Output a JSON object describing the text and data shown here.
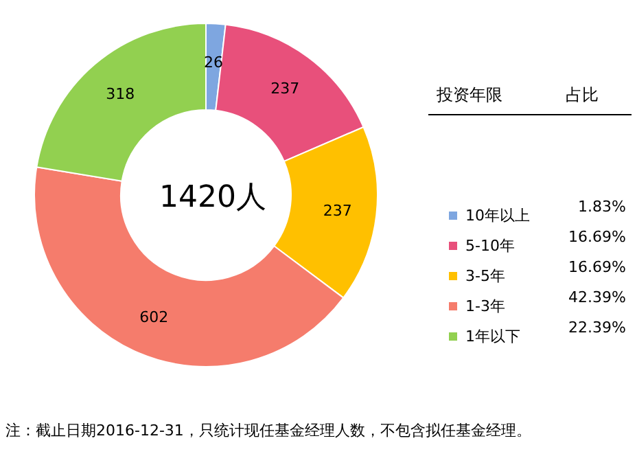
{
  "chart_data": {
    "type": "donut",
    "title": "1420人",
    "legend_title": "投资年限",
    "categories": [
      "10年以上",
      "5-10年",
      "3-5年",
      "1-3年",
      "1年以下"
    ],
    "values": [
      26,
      237,
      237,
      602,
      318
    ],
    "colors": [
      "#7ea6e0",
      "#e8507b",
      "#ffc000",
      "#f57c6c",
      "#92d050"
    ],
    "data_labels": true,
    "legend": "right",
    "annotations": [
      "占比",
      "1.83%",
      "16.69%",
      "16.69%",
      "42.39%",
      "22.39%",
      "注：截止日期2016-12-31，只统计现任基金经理人数，不包含拟任基金经理。"
    ]
  }
}
